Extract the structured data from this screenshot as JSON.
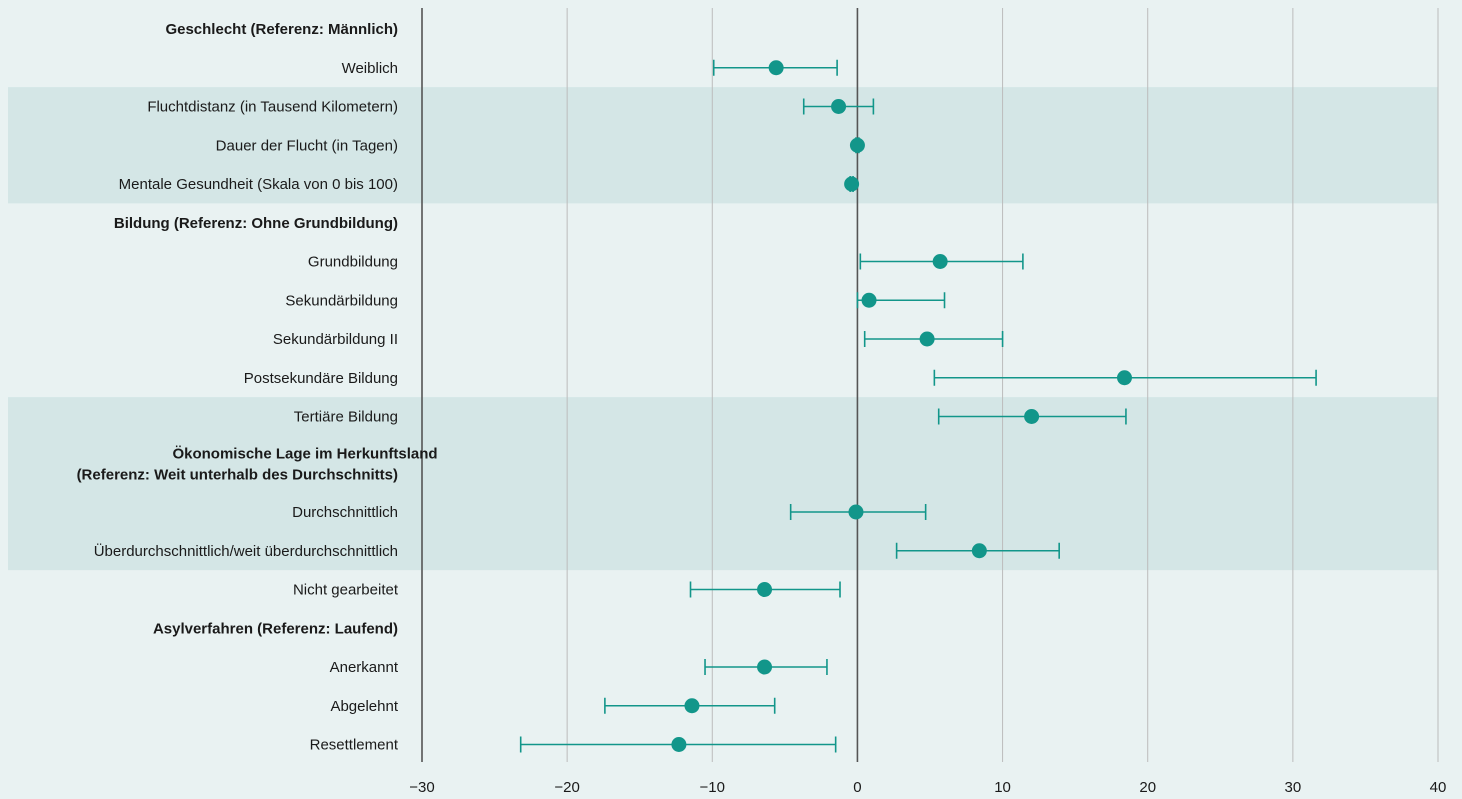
{
  "chart_data": {
    "type": "scatter",
    "title": "",
    "xlabel": "",
    "ylabel": "",
    "xlim": [
      -30,
      40
    ],
    "xticks": [
      -30,
      -20,
      -10,
      0,
      10,
      20,
      30,
      40
    ],
    "xtick_labels": [
      "−30",
      "−20",
      "−10",
      "0",
      "10",
      "20",
      "30",
      "40"
    ],
    "grid": "vertical",
    "colors": {
      "background": "#e9f2f2",
      "band": "#d4e6e6",
      "marker": "#12968a",
      "grid": "#bcbcbc",
      "axis": "#555555"
    },
    "shaded_groups": [
      {
        "from_row": 2,
        "to_row": 4
      },
      {
        "from_row": 10,
        "to_row": 13
      }
    ],
    "rows": [
      {
        "label": "Geschlecht (Referenz: Männlich)",
        "header": true
      },
      {
        "label": "Weiblich",
        "value": -5.6,
        "lower": -9.9,
        "upper": -1.4
      },
      {
        "label": "Fluchtdistanz (in Tausend Kilometern)",
        "value": -1.3,
        "lower": -3.7,
        "upper": 1.1
      },
      {
        "label": "Dauer der Flucht (in Tagen)",
        "value": 0.0,
        "lower": -0.1,
        "upper": 0.1
      },
      {
        "label": "Mentale Gesundheit (Skala von 0 bis 100)",
        "value": -0.4,
        "lower": -0.5,
        "upper": -0.3
      },
      {
        "label": "Bildung (Referenz: Ohne Grundbildung)",
        "header": true
      },
      {
        "label": "Grundbildung",
        "value": 5.7,
        "lower": 0.2,
        "upper": 11.4
      },
      {
        "label": "Sekundärbildung",
        "value": 0.8,
        "lower": 0.0,
        "upper": 6.0
      },
      {
        "label": "Sekundärbildung II",
        "value": 4.8,
        "lower": 0.5,
        "upper": 10.0
      },
      {
        "label": "Postsekundäre Bildung",
        "value": 18.4,
        "lower": 5.3,
        "upper": 31.6
      },
      {
        "label": "Tertiäre Bildung",
        "value": 12.0,
        "lower": 5.6,
        "upper": 18.5
      },
      {
        "label": "Ökonomische Lage im Herkunftsland|(Referenz: Weit unterhalb des Durchschnitts)",
        "header": true,
        "two_line": true
      },
      {
        "label": "Durchschnittlich",
        "value": -0.1,
        "lower": -4.6,
        "upper": 4.7
      },
      {
        "label": "Überdurchschnittlich/weit überdurchschnittlich",
        "value": 8.4,
        "lower": 2.7,
        "upper": 13.9
      },
      {
        "label": "Nicht gearbeitet",
        "value": -6.4,
        "lower": -11.5,
        "upper": -1.2
      },
      {
        "label": "Asylverfahren (Referenz: Laufend)",
        "header": true
      },
      {
        "label": "Anerkannt",
        "value": -6.4,
        "lower": -10.5,
        "upper": -2.1
      },
      {
        "label": "Abgelehnt",
        "value": -11.4,
        "lower": -17.4,
        "upper": -5.7
      },
      {
        "label": "Resettlement",
        "value": -12.3,
        "lower": -23.2,
        "upper": -1.5
      }
    ]
  }
}
